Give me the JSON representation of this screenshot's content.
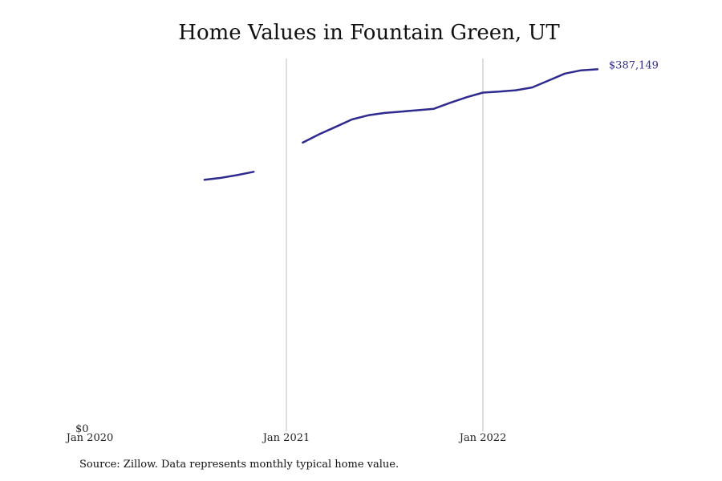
{
  "chart_data": {
    "type": "line",
    "title": "Home Values in Fountain Green, UT",
    "xlabel": "",
    "ylabel": "",
    "x_ticks": [
      "Jan 2020",
      "Jan 2021",
      "Jan 2022"
    ],
    "y_ticks": [
      "$0"
    ],
    "ylim": [
      0,
      410000
    ],
    "grid": "vertical at year ticks",
    "line_color": "#2e2a8f",
    "gridline_color": "#bbbbbb",
    "end_label": "$387,149",
    "series": [
      {
        "segments": [
          [
            {
              "x": "2020-08",
              "y": 268000
            },
            {
              "x": "2020-09",
              "y": 270000
            },
            {
              "x": "2020-10",
              "y": 273000
            },
            {
              "x": "2020-11",
              "y": 276500
            }
          ],
          [
            {
              "x": "2021-02",
              "y": 308000
            },
            {
              "x": "2021-03",
              "y": 317000
            },
            {
              "x": "2021-04",
              "y": 325000
            },
            {
              "x": "2021-05",
              "y": 333000
            },
            {
              "x": "2021-06",
              "y": 337500
            },
            {
              "x": "2021-07",
              "y": 340000
            },
            {
              "x": "2021-08",
              "y": 341500
            },
            {
              "x": "2021-09",
              "y": 343000
            },
            {
              "x": "2021-10",
              "y": 344500
            },
            {
              "x": "2021-11",
              "y": 351000
            },
            {
              "x": "2021-12",
              "y": 357000
            },
            {
              "x": "2022-01",
              "y": 362000
            },
            {
              "x": "2022-02",
              "y": 363000
            },
            {
              "x": "2022-03",
              "y": 364500
            },
            {
              "x": "2022-04",
              "y": 367500
            },
            {
              "x": "2022-05",
              "y": 375000
            },
            {
              "x": "2022-06",
              "y": 382500
            },
            {
              "x": "2022-07",
              "y": 386000
            },
            {
              "x": "2022-08",
              "y": 387149
            }
          ]
        ]
      }
    ]
  },
  "source_note": "Source: Zillow. Data represents monthly typical home value."
}
